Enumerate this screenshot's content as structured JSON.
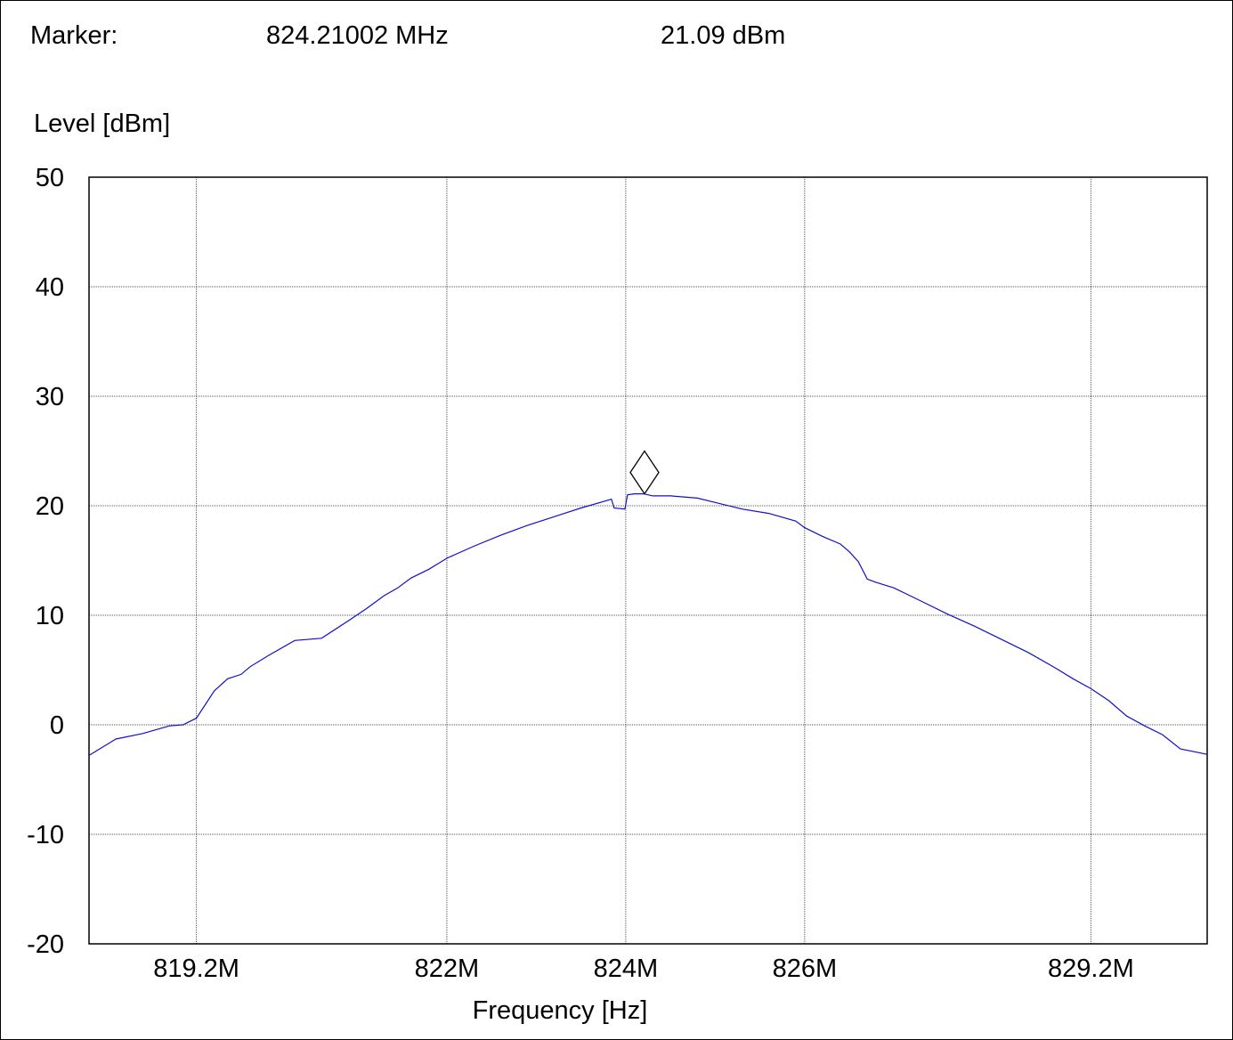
{
  "marker": {
    "label": "Marker:",
    "frequency": "824.21002 MHz",
    "level": "21.09 dBm",
    "x": 824.21002,
    "y": 21.09
  },
  "chart_data": {
    "type": "line",
    "title": "",
    "xlabel": "Frequency [Hz]",
    "ylabel": "Level [dBm]",
    "xlim": [
      818.0,
      830.5
    ],
    "ylim": [
      -20,
      50
    ],
    "x_ticks": [
      {
        "value": 819.2,
        "label": "819.2M"
      },
      {
        "value": 822,
        "label": "822M"
      },
      {
        "value": 824,
        "label": "824M"
      },
      {
        "value": 826,
        "label": "826M"
      },
      {
        "value": 829.2,
        "label": "829.2M"
      }
    ],
    "y_ticks": [
      50,
      40,
      30,
      20,
      10,
      0,
      -10,
      -20
    ],
    "grid": true,
    "series": [
      {
        "color": "#1010c8",
        "x": [
          818.0,
          818.3,
          818.6,
          818.9,
          819.05,
          819.2,
          819.4,
          819.55,
          819.7,
          819.8,
          820.0,
          820.3,
          820.6,
          820.9,
          821.1,
          821.3,
          821.45,
          821.6,
          821.8,
          822.0,
          822.3,
          822.6,
          822.9,
          823.2,
          823.5,
          823.8,
          823.84,
          823.87,
          823.99,
          824.02,
          824.1,
          824.2,
          824.3,
          824.5,
          824.8,
          825.0,
          825.3,
          825.6,
          825.9,
          826.0,
          826.2,
          826.4,
          826.5,
          826.6,
          826.7,
          826.8,
          827.0,
          827.3,
          827.6,
          827.9,
          828.2,
          828.5,
          828.8,
          829.0,
          829.2,
          829.4,
          829.6,
          829.8,
          830.0,
          830.2,
          830.5
        ],
        "y": [
          -2.8,
          -1.3,
          -0.8,
          -0.1,
          0.0,
          0.6,
          3.1,
          4.2,
          4.6,
          5.3,
          6.3,
          7.7,
          7.9,
          9.5,
          10.6,
          11.8,
          12.5,
          13.4,
          14.2,
          15.2,
          16.3,
          17.3,
          18.2,
          19.0,
          19.8,
          20.5,
          20.6,
          19.8,
          19.7,
          21.0,
          21.09,
          21.09,
          20.9,
          20.9,
          20.7,
          20.3,
          19.7,
          19.3,
          18.6,
          18.0,
          17.2,
          16.5,
          15.8,
          14.9,
          13.3,
          13.0,
          12.5,
          11.3,
          10.1,
          9.0,
          7.8,
          6.6,
          5.2,
          4.2,
          3.3,
          2.2,
          0.8,
          -0.1,
          -0.9,
          -2.2,
          -2.7
        ]
      }
    ]
  }
}
